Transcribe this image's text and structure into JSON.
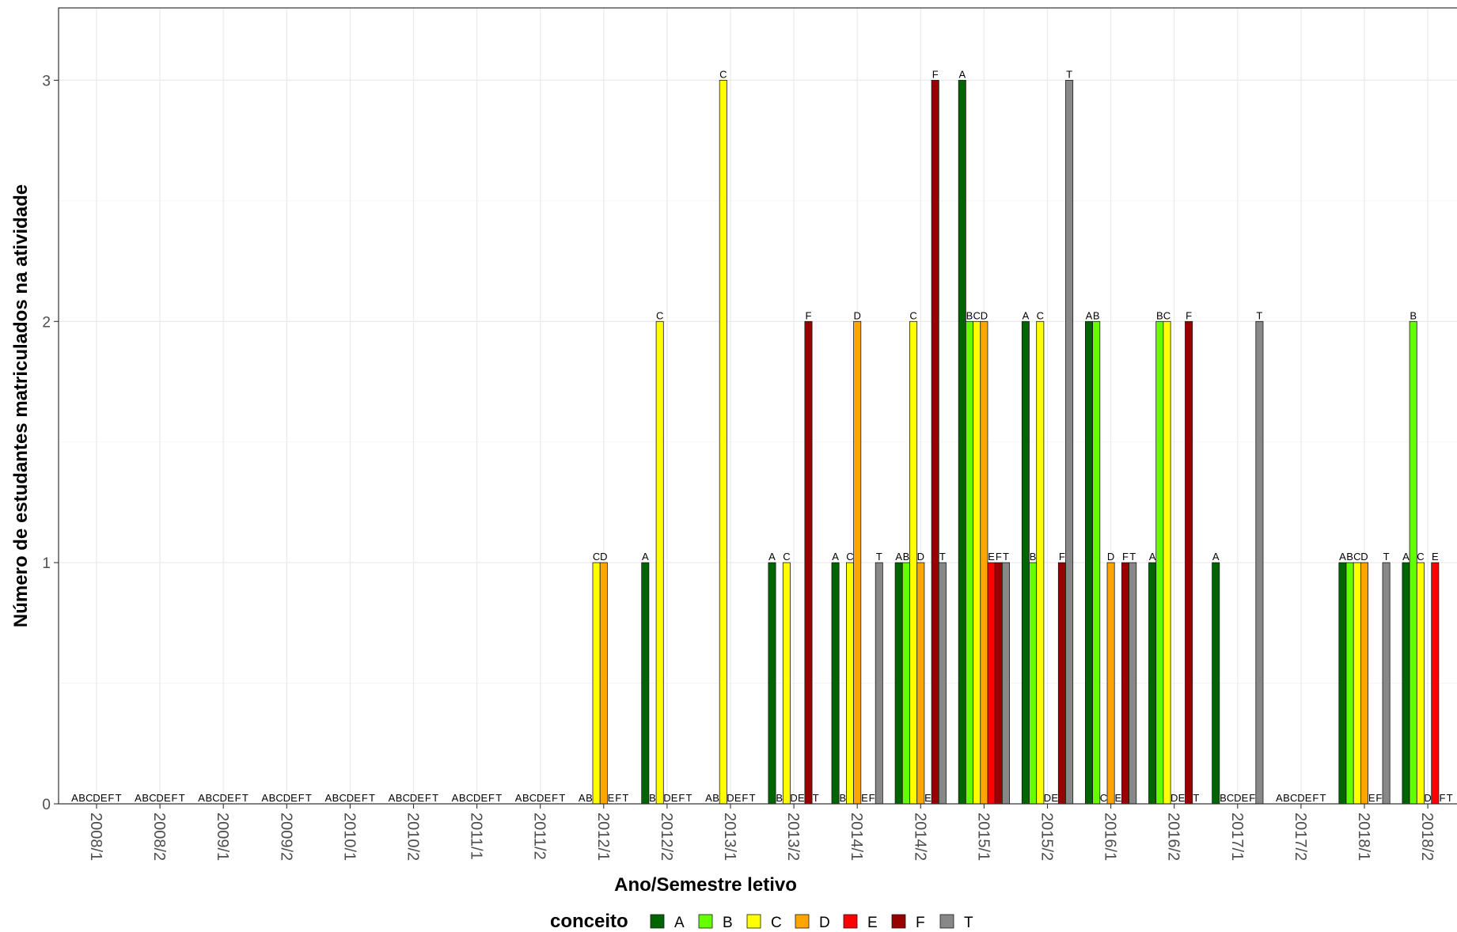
{
  "chart_data": {
    "type": "bar",
    "xlabel": "Ano/Semestre letivo",
    "ylabel": "Número de estudantes matriculados na atividade",
    "ylim": [
      0,
      3.3
    ],
    "yticks": [
      0,
      1,
      2,
      3
    ],
    "grid": true,
    "legend": {
      "title": "conceito",
      "position": "bottom"
    },
    "categories": [
      "2008/1",
      "2008/2",
      "2009/1",
      "2009/2",
      "2010/1",
      "2010/2",
      "2011/1",
      "2011/2",
      "2012/1",
      "2012/2",
      "2013/1",
      "2013/2",
      "2014/1",
      "2014/2",
      "2015/1",
      "2015/2",
      "2016/1",
      "2016/2",
      "2017/1",
      "2017/2",
      "2018/1",
      "2018/2"
    ],
    "series": [
      {
        "name": "A",
        "color": "#006400",
        "values": [
          0,
          0,
          0,
          0,
          0,
          0,
          0,
          0,
          0,
          1,
          0,
          1,
          1,
          1,
          3,
          2,
          2,
          1,
          1,
          0,
          1,
          1
        ]
      },
      {
        "name": "B",
        "color": "#66ff00",
        "values": [
          0,
          0,
          0,
          0,
          0,
          0,
          0,
          0,
          0,
          0,
          0,
          0,
          0,
          1,
          2,
          1,
          2,
          2,
          0,
          0,
          1,
          2
        ]
      },
      {
        "name": "C",
        "color": "#ffff00",
        "values": [
          0,
          0,
          0,
          0,
          0,
          0,
          0,
          0,
          1,
          2,
          3,
          1,
          1,
          2,
          2,
          2,
          0,
          2,
          0,
          0,
          1,
          1
        ]
      },
      {
        "name": "D",
        "color": "#ffa500",
        "values": [
          0,
          0,
          0,
          0,
          0,
          0,
          0,
          0,
          1,
          0,
          0,
          0,
          2,
          1,
          2,
          0,
          1,
          0,
          0,
          0,
          1,
          0
        ]
      },
      {
        "name": "E",
        "color": "#ff0000",
        "values": [
          0,
          0,
          0,
          0,
          0,
          0,
          0,
          0,
          0,
          0,
          0,
          0,
          0,
          0,
          1,
          0,
          0,
          0,
          0,
          0,
          0,
          1
        ]
      },
      {
        "name": "F",
        "color": "#990000",
        "values": [
          0,
          0,
          0,
          0,
          0,
          0,
          0,
          0,
          0,
          0,
          0,
          2,
          0,
          3,
          1,
          1,
          1,
          2,
          0,
          0,
          0,
          0
        ]
      },
      {
        "name": "T",
        "color": "#888888",
        "values": [
          0,
          0,
          0,
          0,
          0,
          0,
          0,
          0,
          0,
          0,
          0,
          0,
          1,
          1,
          1,
          3,
          1,
          0,
          2,
          0,
          1,
          0
        ]
      }
    ]
  }
}
